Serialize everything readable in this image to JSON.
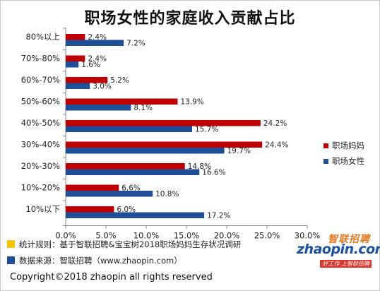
{
  "chart_data": {
    "type": "bar",
    "orientation": "horizontal",
    "title": "职场女性的家庭收入贡献占比",
    "categories": [
      "80%以上",
      "70%-80%",
      "60%-70%",
      "50%-60%",
      "40%-50%",
      "30%-40%",
      "20%-30%",
      "10%-20%",
      "10%以下"
    ],
    "series": [
      {
        "name": "职场妈妈",
        "color": "#c00000",
        "values": [
          2.4,
          2.4,
          5.2,
          13.9,
          24.2,
          24.4,
          14.8,
          6.6,
          6.0
        ]
      },
      {
        "name": "职场女性",
        "color": "#1f4e99",
        "values": [
          7.2,
          1.6,
          3.0,
          8.1,
          15.7,
          19.7,
          16.6,
          10.8,
          17.2
        ]
      }
    ],
    "xlim": [
      0,
      30
    ],
    "xticks": [
      "0.0%",
      "5.0%",
      "10.0%",
      "15.0%",
      "20.0%",
      "25.0%",
      "30.0%"
    ],
    "xticks_values": [
      0,
      5,
      10,
      15,
      20,
      25,
      30
    ],
    "value_suffix": "%",
    "grid": false,
    "legend_position": "right"
  },
  "notes": [
    {
      "text": "统计规则：基于智联招聘&宝宝树2018职场妈妈生存状况调研",
      "color": "#f5c400"
    },
    {
      "text": "数据来源：智联招聘（www.zhaopin.com）",
      "color": "#1f4e99"
    }
  ],
  "copyright": "Copyright©2018 zhaopin all rights reserved",
  "logo": {
    "top_text": "智联招聘",
    "main_text": "zhaopin.com",
    "tagline": "好工作 上智联招聘"
  }
}
